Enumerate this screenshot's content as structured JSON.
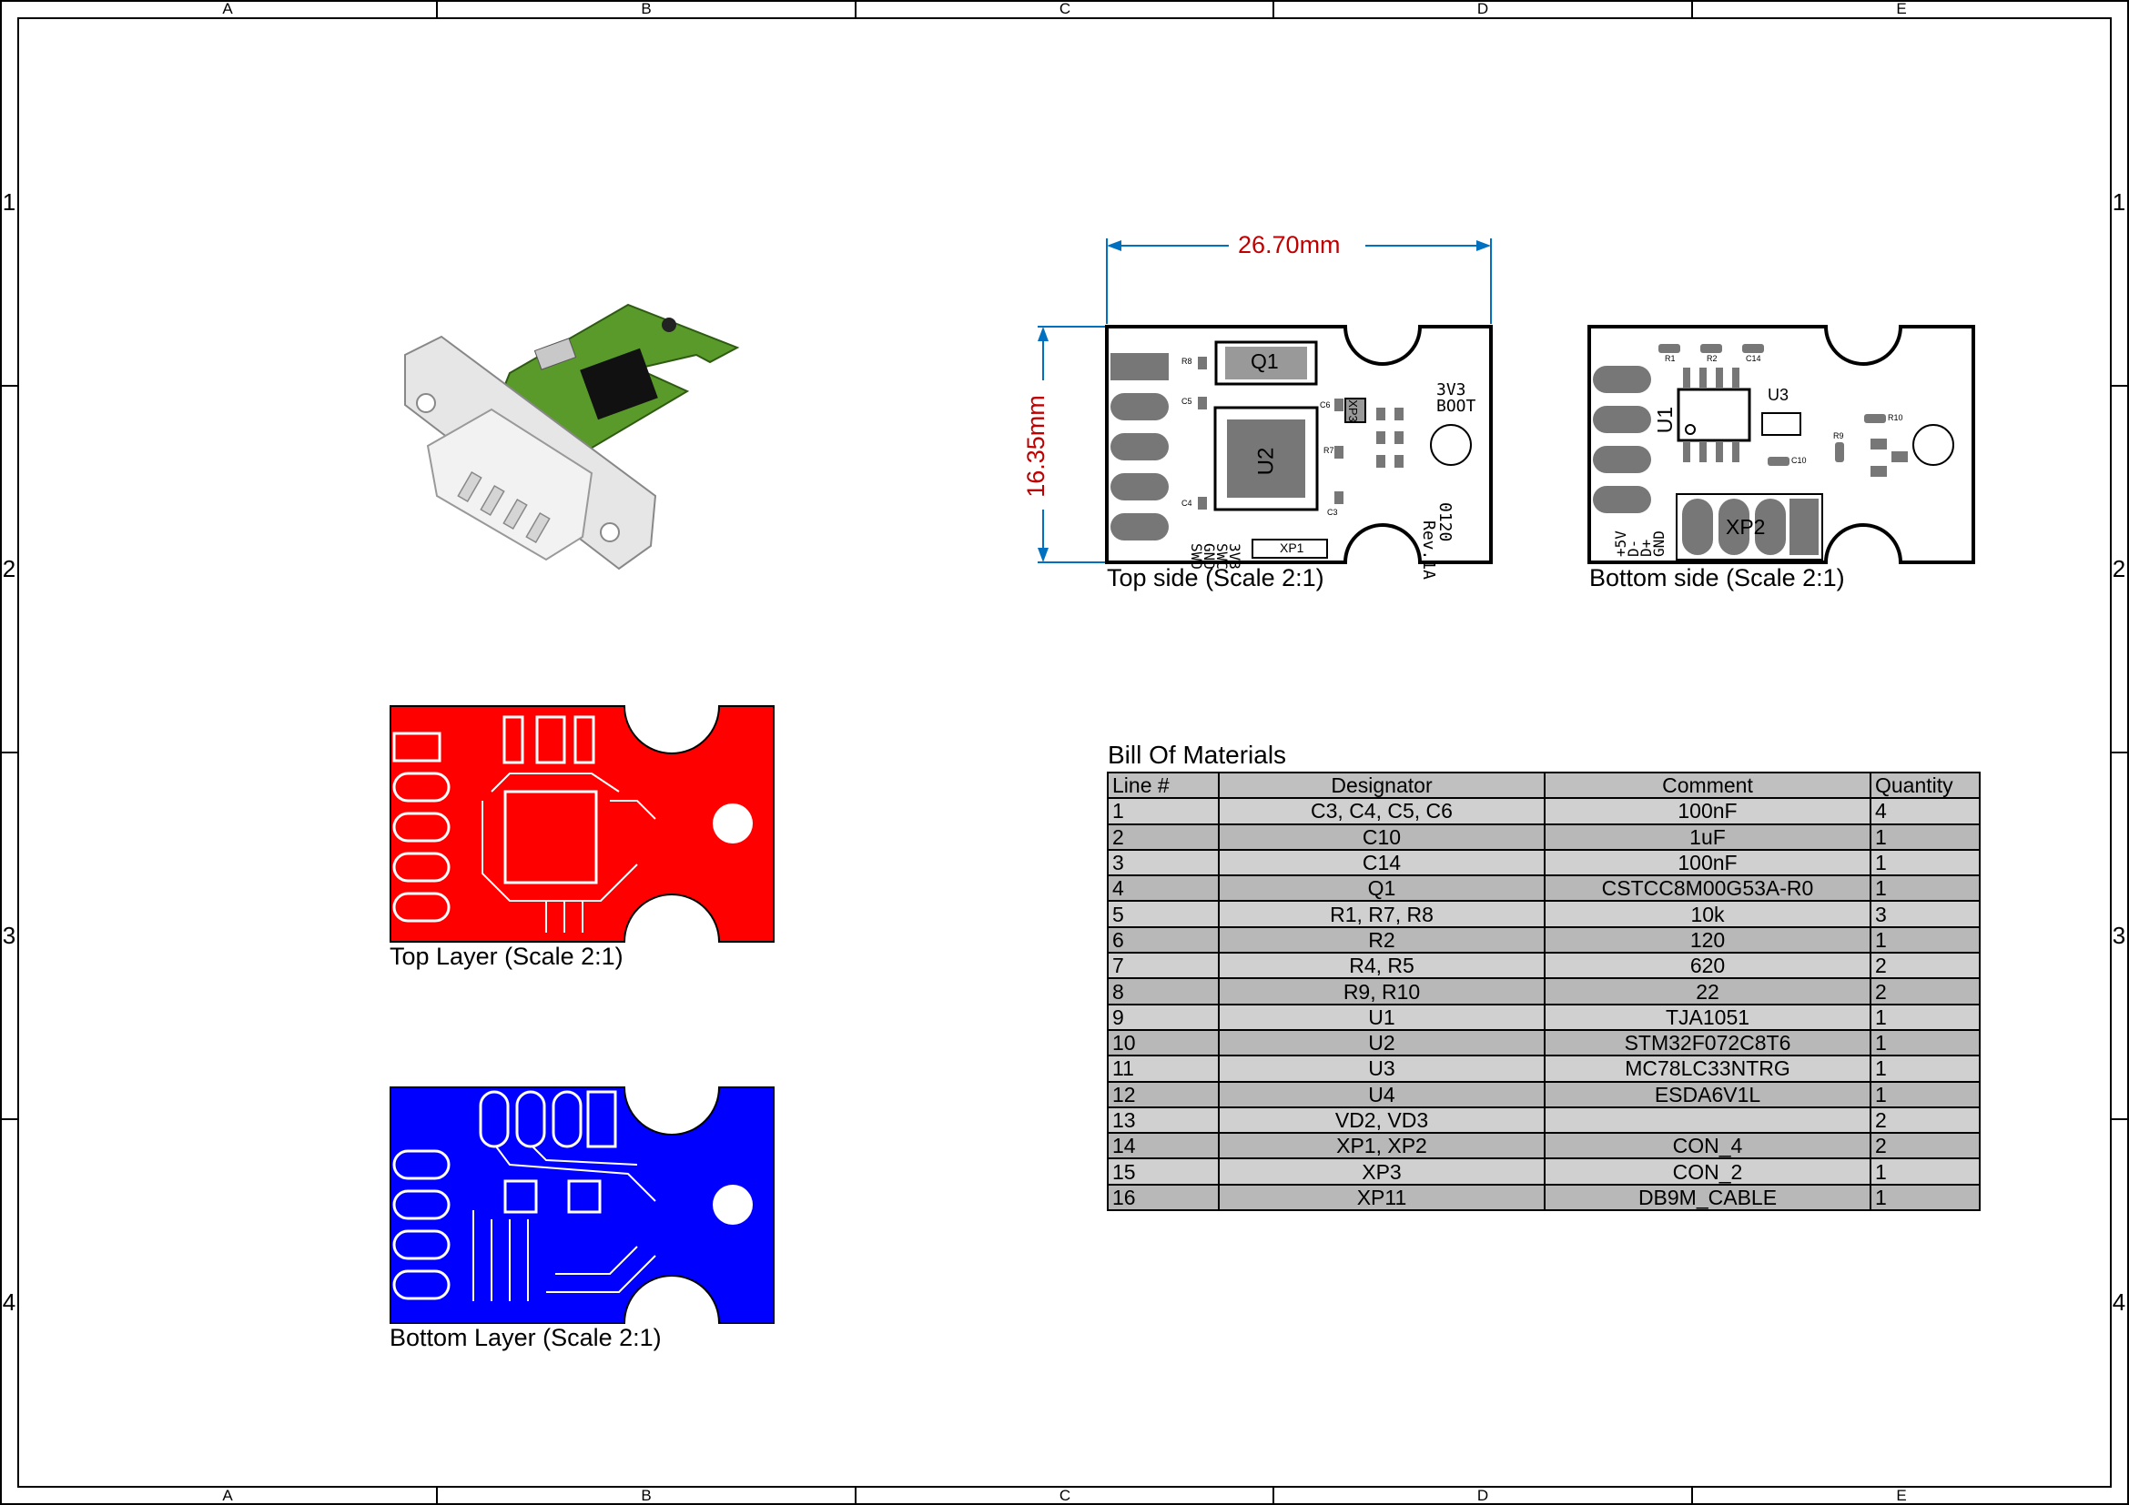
{
  "sheet": {
    "zones_top": [
      "A",
      "B",
      "C",
      "D",
      "E"
    ],
    "zones_side": [
      "1",
      "2",
      "3",
      "4"
    ]
  },
  "views": {
    "top_side": {
      "caption": "Top side (Scale 2:1)",
      "dim_width": "26.70mm",
      "dim_height": "16.35mm",
      "silk": {
        "q1": "Q1",
        "u2": "U2",
        "xp3": "XP3",
        "xp1": "XP1",
        "boot1": "3V3",
        "boot2": "BOOT",
        "rev1": "Rev.1A",
        "rev2": "0120",
        "pins": [
          "3V3",
          "SWC",
          "GND",
          "SWD"
        ],
        "r8": "R8",
        "c5": "C5",
        "c6": "C6",
        "r7": "R7",
        "c4": "C4",
        "c3": "C3"
      }
    },
    "bottom_side": {
      "caption": "Bottom side (Scale 2:1)",
      "silk": {
        "u1": "U1",
        "u3": "U3",
        "xp2": "XP2",
        "r1": "R1",
        "r2": "R2",
        "c14": "C14",
        "r10": "R10",
        "r9": "R9",
        "c10": "C10",
        "pins": [
          "+5V",
          "D-",
          "D+",
          "GND"
        ]
      }
    },
    "top_layer": {
      "caption": "Top Layer (Scale 2:1)",
      "color": "#ff0000"
    },
    "bottom_layer": {
      "caption": "Bottom Layer (Scale 2:1)",
      "color": "#0000ff"
    },
    "render_3d": {
      "board_color": "#5a9a2a",
      "connector_color": "#e6e6e6"
    }
  },
  "bom": {
    "title": "Bill Of Materials",
    "columns": [
      "Line #",
      "Designator",
      "Comment",
      "Quantity"
    ],
    "rows": [
      [
        "1",
        "C3, C4, C5, C6",
        "100nF",
        "4"
      ],
      [
        "2",
        "C10",
        "1uF",
        "1"
      ],
      [
        "3",
        "C14",
        "100nF",
        "1"
      ],
      [
        "4",
        "Q1",
        "CSTCC8M00G53A-R0",
        "1"
      ],
      [
        "5",
        "R1, R7, R8",
        "10k",
        "3"
      ],
      [
        "6",
        "R2",
        "120",
        "1"
      ],
      [
        "7",
        "R4, R5",
        "620",
        "2"
      ],
      [
        "8",
        "R9, R10",
        "22",
        "2"
      ],
      [
        "9",
        "U1",
        "TJA1051",
        "1"
      ],
      [
        "10",
        "U2",
        "STM32F072C8T6",
        "1"
      ],
      [
        "11",
        "U3",
        "MC78LC33NTRG",
        "1"
      ],
      [
        "12",
        "U4",
        "ESDA6V1L",
        "1"
      ],
      [
        "13",
        "VD2, VD3",
        "",
        "2"
      ],
      [
        "14",
        "XP1, XP2",
        "CON_4",
        "2"
      ],
      [
        "15",
        "XP3",
        "CON_2",
        "1"
      ],
      [
        "16",
        "XP11",
        "DB9M_CABLE",
        "1"
      ]
    ]
  },
  "colors": {
    "dimension": "#0070c0",
    "dimension_text": "#c00000"
  }
}
